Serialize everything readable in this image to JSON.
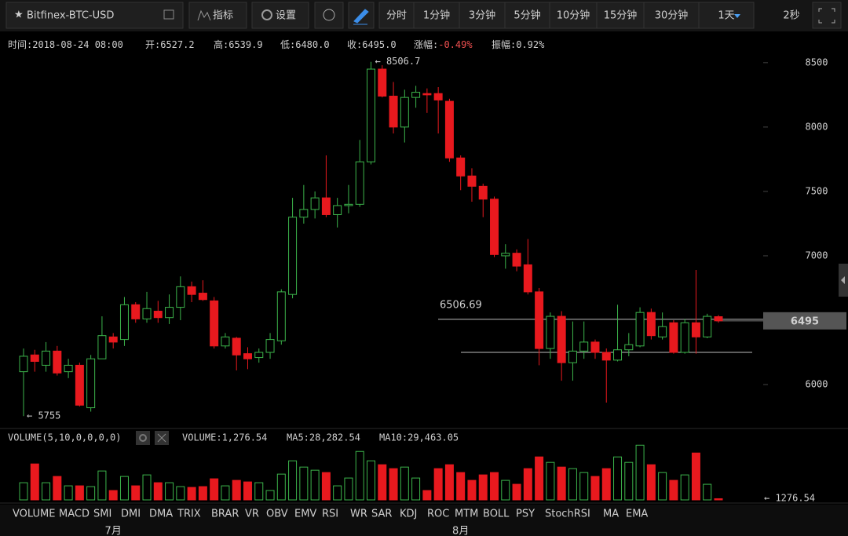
{
  "toolbar": {
    "symbol": "Bitfinex-BTC-USD",
    "buttons": [
      "指标",
      "设置"
    ],
    "intervals": [
      "分时",
      "1分钟",
      "3分钟",
      "5分钟",
      "10分钟",
      "15分钟",
      "30分钟",
      "1天"
    ],
    "refresh": "2秒"
  },
  "info": [
    {
      "label": "时间:",
      "value": "2018-08-24 08:00"
    },
    {
      "label": "开:",
      "value": "6527.2"
    },
    {
      "label": "高:",
      "value": "6539.9"
    },
    {
      "label": "低:",
      "value": "6480.0"
    },
    {
      "label": "收:",
      "value": "6495.0"
    },
    {
      "label": "涨幅:",
      "value": "-0.49%"
    },
    {
      "label": "振幅:",
      "value": "0.92%"
    }
  ],
  "chart_data": {
    "type": "candlestick",
    "categories": [
      null,
      null,
      null,
      null,
      null,
      null,
      null,
      null,
      "7月",
      null,
      null,
      null,
      null,
      null,
      null,
      null,
      null,
      null,
      null,
      null,
      null,
      null,
      null,
      null,
      null,
      null,
      null,
      null,
      null,
      null,
      null,
      null,
      null,
      null,
      null,
      null,
      null,
      null,
      null,
      "8月",
      null,
      null,
      null,
      null,
      null,
      null,
      null,
      null,
      null,
      null,
      null,
      null,
      null,
      null,
      null,
      null,
      null,
      null,
      null,
      null,
      null,
      null,
      null
    ],
    "open": [
      6100,
      6230,
      6150,
      6260,
      6100,
      6150,
      5820,
      6200,
      6370,
      6350,
      6620,
      6510,
      6570,
      6520,
      6600,
      6760,
      6710,
      6650,
      6300,
      6360,
      6240,
      6210,
      6250,
      6340,
      6700,
      7300,
      7360,
      7450,
      7320,
      7390,
      7400,
      7730,
      8450,
      8240,
      8000,
      8230,
      8260,
      8260,
      8200,
      7760,
      7620,
      7540,
      7440,
      7000,
      7020,
      6930,
      6720,
      6280,
      6530,
      6170,
      6260,
      6330,
      6250,
      6190,
      6270,
      6300,
      6560,
      6370,
      6480,
      6250,
      6480,
      6370,
      6527.2
    ],
    "high": [
      6280,
      6270,
      6330,
      6300,
      6200,
      6170,
      6230,
      6530,
      6400,
      6680,
      6640,
      6720,
      6650,
      6700,
      6840,
      6800,
      6810,
      6680,
      6400,
      6370,
      6290,
      6280,
      6400,
      6740,
      7450,
      7550,
      7500,
      7780,
      7450,
      7550,
      7900,
      8506.7,
      8480,
      8350,
      8290,
      8320,
      8300,
      8310,
      8220,
      7780,
      7680,
      7560,
      7460,
      7090,
      7050,
      7130,
      6750,
      6560,
      6570,
      6490,
      6490,
      6350,
      6280,
      6620,
      6400,
      6600,
      6590,
      6560,
      6500,
      6510,
      6890,
      6550,
      6539.9
    ],
    "low": [
      5755,
      6100,
      6100,
      6070,
      6050,
      5830,
      5790,
      6200,
      6280,
      6300,
      6480,
      6480,
      6480,
      6470,
      6500,
      6640,
      6650,
      6280,
      6280,
      6110,
      6120,
      6170,
      6200,
      6310,
      6670,
      7250,
      7290,
      7300,
      7220,
      7330,
      7380,
      7710,
      8230,
      7950,
      7880,
      8150,
      8110,
      7950,
      7730,
      7510,
      7420,
      7300,
      6990,
      6900,
      6880,
      6700,
      6150,
      6200,
      6030,
      6030,
      6200,
      6200,
      5860,
      6180,
      6220,
      6290,
      6350,
      6350,
      6240,
      6240,
      6240,
      6360,
      6480
    ],
    "close": [
      6220,
      6180,
      6260,
      6090,
      6150,
      5840,
      6200,
      6380,
      6330,
      6620,
      6510,
      6590,
      6520,
      6600,
      6760,
      6700,
      6660,
      6300,
      6370,
      6230,
      6200,
      6250,
      6350,
      6720,
      7300,
      7360,
      7450,
      7320,
      7390,
      7400,
      7730,
      8450,
      8240,
      8000,
      8230,
      8270,
      8250,
      8210,
      7760,
      7620,
      7540,
      7440,
      7010,
      7020,
      6920,
      6720,
      6280,
      6530,
      6170,
      6260,
      6330,
      6250,
      6190,
      6270,
      6310,
      6560,
      6380,
      6450,
      6250,
      6480,
      6370,
      6530,
      6495
    ],
    "up_color": "#3cb44b",
    "down_color": "#e8191e",
    "ylim": [
      5665,
      8560
    ],
    "yticks": [
      6000,
      6500,
      7000,
      7500,
      8000,
      8500
    ],
    "max_label": "← 8506.7",
    "min_label": "← 5755",
    "lines": [
      {
        "label": "6506.69",
        "value": 6506.69
      },
      {
        "value": 6250
      }
    ],
    "last_price": "6495",
    "volume": {
      "title": "VOLUME(5,10,0,0,0,0)",
      "stats": [
        "VOLUME:1,276.54",
        "MA5:28,282.54",
        "MA10:29,463.05"
      ],
      "values": [
        18260,
        38180,
        18260,
        24900,
        14940,
        14940,
        14110,
        30710,
        9960,
        24900,
        14940,
        26560,
        18260,
        18260,
        14110,
        13280,
        14110,
        22410,
        14940,
        20750,
        19090,
        18260,
        9960,
        27390,
        41500,
        34860,
        31540,
        29050,
        14940,
        23240,
        51460,
        41500,
        37350,
        33200,
        34860,
        23240,
        9960,
        33200,
        37350,
        29050,
        20750,
        26560,
        29050,
        20750,
        16600,
        33200,
        45650,
        39840,
        34860,
        33200,
        29050,
        24900,
        33200,
        45650,
        39840,
        58100,
        37350,
        29050,
        20750,
        26560,
        49800,
        16600,
        1276.54
      ],
      "ylim": [
        0,
        60000
      ],
      "last_label": "← 1276.54"
    }
  },
  "indicators": [
    "VOLUME",
    "MACD",
    "SMI",
    "DMI",
    "DMA",
    "TRIX",
    "BRAR",
    "VR",
    "OBV",
    "EMV",
    "RSI",
    "WR",
    "SAR",
    "KDJ",
    "ROC",
    "MTM",
    "BOLL",
    "PSY",
    "StochRSI",
    "MA",
    "EMA"
  ]
}
